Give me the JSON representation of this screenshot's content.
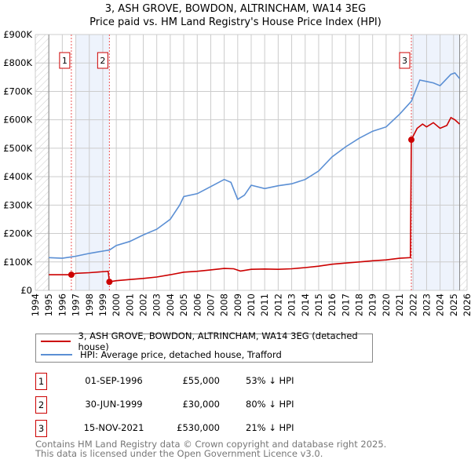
{
  "chart_data": {
    "type": "line",
    "title": "3, ASH GROVE, BOWDON, ALTRINCHAM, WA14 3EG",
    "subtitle": "Price paid vs. HM Land Registry's House Price Index (HPI)",
    "xlim": [
      1994,
      2026
    ],
    "ylim": [
      0,
      900000
    ],
    "x_ticks": [
      "1994",
      "1995",
      "1996",
      "1997",
      "1998",
      "1999",
      "2000",
      "2001",
      "2002",
      "2003",
      "2004",
      "2005",
      "2006",
      "2007",
      "2008",
      "2009",
      "2010",
      "2011",
      "2012",
      "2013",
      "2014",
      "2015",
      "2016",
      "2017",
      "2018",
      "2019",
      "2020",
      "2021",
      "2022",
      "2023",
      "2024",
      "2025",
      "2026"
    ],
    "y_ticks": [
      {
        "v": 0,
        "label": "£0"
      },
      {
        "v": 100000,
        "label": "£100K"
      },
      {
        "v": 200000,
        "label": "£200K"
      },
      {
        "v": 300000,
        "label": "£300K"
      },
      {
        "v": 400000,
        "label": "£400K"
      },
      {
        "v": 500000,
        "label": "£500K"
      },
      {
        "v": 600000,
        "label": "£600K"
      },
      {
        "v": 700000,
        "label": "£700K"
      },
      {
        "v": 800000,
        "label": "£800K"
      },
      {
        "v": 900000,
        "label": "£900K"
      }
    ],
    "grid": true,
    "data_range": [
      1995,
      2025.45
    ],
    "shaded_ranges": [
      [
        1996.99,
        1999.49
      ],
      [
        2021.87,
        2025.45
      ]
    ],
    "series": [
      {
        "name": "3, ASH GROVE, BOWDON, ALTRINCHAM, WA14 3EG (detached house)",
        "color": "#cc0000",
        "x": [
          1995,
          1996.67,
          1997,
          1998,
          1999.4,
          1999.49,
          2000,
          2001,
          2002,
          2003,
          2004,
          2005,
          2006,
          2007,
          2008,
          2008.7,
          2009.2,
          2010,
          2011,
          2012,
          2013,
          2014,
          2015,
          2016,
          2017,
          2018,
          2019,
          2020,
          2021,
          2021.8,
          2021.87,
          2022.3,
          2022.7,
          2023,
          2023.5,
          2024,
          2024.5,
          2024.8,
          2025.1,
          2025.45
        ],
        "y": [
          55000,
          55000,
          60000,
          62000,
          67000,
          30000,
          34000,
          38000,
          42000,
          47000,
          55000,
          64000,
          67000,
          72000,
          77000,
          76000,
          68000,
          74000,
          75000,
          74000,
          76000,
          80000,
          85000,
          92000,
          96000,
          100000,
          104000,
          107000,
          113000,
          115000,
          530000,
          570000,
          585000,
          575000,
          590000,
          570000,
          580000,
          608000,
          600000,
          585000
        ]
      },
      {
        "name": "HPI: Average price, detached house, Trafford",
        "color": "#5b8fd4",
        "x": [
          1995,
          1996,
          1996.7,
          1997,
          1998,
          1999,
          1999.5,
          2000,
          2001,
          2002,
          2003,
          2004,
          2004.7,
          2005,
          2006,
          2007,
          2008,
          2008.5,
          2009,
          2009.5,
          2010,
          2011,
          2012,
          2013,
          2014,
          2015,
          2016,
          2017,
          2018,
          2019,
          2020,
          2021,
          2021.87,
          2022.5,
          2023,
          2023.5,
          2024,
          2024.8,
          2025.1,
          2025.45
        ],
        "y": [
          115000,
          113000,
          118000,
          120000,
          130000,
          138000,
          142000,
          158000,
          172000,
          195000,
          215000,
          250000,
          300000,
          330000,
          340000,
          365000,
          390000,
          380000,
          320000,
          335000,
          370000,
          358000,
          368000,
          375000,
          390000,
          420000,
          470000,
          505000,
          535000,
          560000,
          575000,
          620000,
          665000,
          740000,
          735000,
          730000,
          720000,
          760000,
          765000,
          745000
        ]
      }
    ],
    "transactions": [
      {
        "id": "1",
        "x": 1996.67,
        "price": 55000,
        "date": "01-SEP-1996",
        "price_label": "£55,000",
        "hpi": "53% ↓ HPI"
      },
      {
        "id": "2",
        "x": 1999.49,
        "price": 30000,
        "date": "30-JUN-1999",
        "price_label": "£30,000",
        "hpi": "80% ↓ HPI"
      },
      {
        "id": "3",
        "x": 2021.87,
        "price": 530000,
        "date": "15-NOV-2021",
        "price_label": "£530,000",
        "hpi": "21% ↓ HPI"
      }
    ]
  },
  "footer": {
    "line1": "Contains HM Land Registry data © Crown copyright and database right 2025.",
    "line2": "This data is licensed under the Open Government Licence v3.0."
  }
}
